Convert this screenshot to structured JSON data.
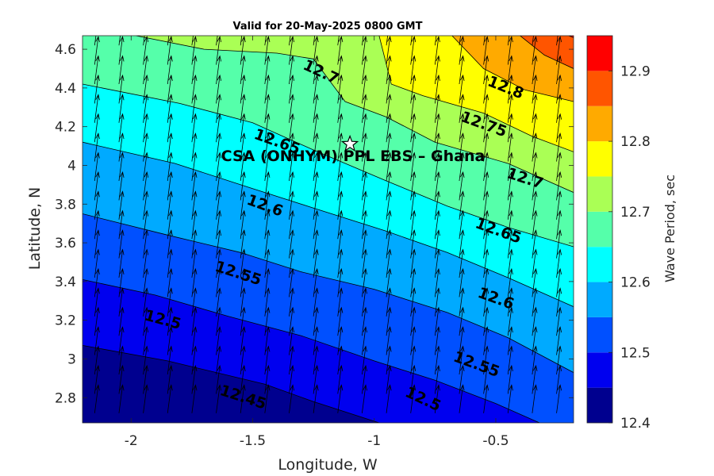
{
  "chart_data": {
    "type": "contour",
    "title": "Valid for 20-May-2025 0800 GMT",
    "xlabel": "Longitude, W",
    "ylabel": "Latitude, N",
    "xlim": [
      -2.2,
      -0.18
    ],
    "ylim": [
      2.67,
      4.67
    ],
    "x_ticks": [
      -2,
      -1.5,
      -1,
      -0.5
    ],
    "x_tick_labels": [
      "-2",
      "-1.5",
      "-1",
      "-0.5"
    ],
    "y_ticks": [
      2.8,
      3,
      3.2,
      3.4,
      3.6,
      3.8,
      4,
      4.2,
      4.4,
      4.6
    ],
    "y_tick_labels": [
      "2.8",
      "3",
      "3.2",
      "3.4",
      "3.6",
      "3.8",
      "4",
      "4.2",
      "4.4",
      "4.6"
    ],
    "colorbar": {
      "label": "Wave Period, sec",
      "range": [
        12.4,
        12.95
      ],
      "tick_values": [
        12.4,
        12.5,
        12.6,
        12.7,
        12.8,
        12.9
      ],
      "tick_labels": [
        "12.4",
        "12.5",
        "12.6",
        "12.7",
        "12.8",
        "12.9"
      ],
      "levels": [
        12.4,
        12.45,
        12.5,
        12.55,
        12.6,
        12.65,
        12.7,
        12.75,
        12.8,
        12.85,
        12.9,
        12.95
      ],
      "colors": [
        "#00008f",
        "#0000ef",
        "#0050ff",
        "#00aaff",
        "#00ffff",
        "#55ffaa",
        "#aaff55",
        "#ffff00",
        "#ffaa00",
        "#ff5500",
        "#ff0000"
      ]
    },
    "contours": [
      {
        "level": 12.45,
        "label": "12.45",
        "points": [
          [
            -2.2,
            3.07
          ],
          [
            -1.85,
            2.99
          ],
          [
            -1.45,
            2.87
          ],
          [
            -1.25,
            2.78
          ],
          [
            -0.98,
            2.67
          ]
        ]
      },
      {
        "level": 12.5,
        "label": "12.5",
        "points": [
          [
            -2.2,
            3.41
          ],
          [
            -1.9,
            3.33
          ],
          [
            -1.6,
            3.22
          ],
          [
            -1.3,
            3.12
          ],
          [
            -1.0,
            2.99
          ],
          [
            -0.75,
            2.89
          ],
          [
            -0.5,
            2.77
          ],
          [
            -0.32,
            2.67
          ]
        ]
      },
      {
        "level": 12.55,
        "label": "12.55",
        "points": [
          [
            -2.2,
            3.75
          ],
          [
            -1.85,
            3.64
          ],
          [
            -1.55,
            3.55
          ],
          [
            -1.3,
            3.45
          ],
          [
            -1.0,
            3.36
          ],
          [
            -0.7,
            3.24
          ],
          [
            -0.45,
            3.11
          ],
          [
            -0.18,
            2.93
          ]
        ]
      },
      {
        "level": 12.6,
        "label": "12.6",
        "points": [
          [
            -2.2,
            4.12
          ],
          [
            -1.82,
            4.01
          ],
          [
            -1.5,
            3.88
          ],
          [
            -1.25,
            3.78
          ],
          [
            -0.95,
            3.66
          ],
          [
            -0.7,
            3.55
          ],
          [
            -0.45,
            3.42
          ],
          [
            -0.18,
            3.27
          ]
        ]
      },
      {
        "level": 12.65,
        "label": "12.65",
        "points": [
          [
            -2.2,
            4.42
          ],
          [
            -1.8,
            4.32
          ],
          [
            -1.5,
            4.22
          ],
          [
            -1.25,
            4.08
          ],
          [
            -0.95,
            3.92
          ],
          [
            -0.7,
            3.79
          ],
          [
            -0.45,
            3.68
          ],
          [
            -0.18,
            3.58
          ]
        ]
      },
      {
        "level": 12.7,
        "label": "12.7",
        "points": [
          [
            -1.98,
            4.67
          ],
          [
            -1.7,
            4.6
          ],
          [
            -1.4,
            4.58
          ],
          [
            -1.25,
            4.55
          ],
          [
            -1.12,
            4.33
          ],
          [
            -0.95,
            4.25
          ],
          [
            -0.75,
            4.12
          ],
          [
            -0.45,
            4.01
          ],
          [
            -0.18,
            3.86
          ]
        ]
      },
      {
        "level": 12.75,
        "label": "12.75",
        "points": [
          [
            -0.98,
            4.67
          ],
          [
            -0.93,
            4.42
          ],
          [
            -0.8,
            4.36
          ],
          [
            -0.55,
            4.27
          ],
          [
            -0.35,
            4.15
          ],
          [
            -0.18,
            4.07
          ]
        ]
      },
      {
        "level": 12.8,
        "label": "12.8",
        "points": [
          [
            -0.68,
            4.67
          ],
          [
            -0.55,
            4.5
          ],
          [
            -0.38,
            4.39
          ],
          [
            -0.18,
            4.33
          ]
        ]
      },
      {
        "level": 12.85,
        "label": "",
        "points": [
          [
            -0.4,
            4.67
          ],
          [
            -0.3,
            4.57
          ],
          [
            -0.18,
            4.5
          ]
        ]
      },
      {
        "level": 12.9,
        "label": "",
        "points": [
          [
            -0.2,
            4.67
          ],
          [
            -0.18,
            4.66
          ]
        ]
      }
    ],
    "contour_labels": [
      {
        "text": "12.7",
        "x": -1.22,
        "y": 4.48,
        "angle": 25
      },
      {
        "text": "12.65",
        "x": -1.4,
        "y": 4.12,
        "angle": 20
      },
      {
        "text": "12.8",
        "x": -0.46,
        "y": 4.4,
        "angle": 22
      },
      {
        "text": "12.75",
        "x": -0.55,
        "y": 4.21,
        "angle": 20
      },
      {
        "text": "12.7",
        "x": -0.38,
        "y": 3.93,
        "angle": 18
      },
      {
        "text": "12.6",
        "x": -1.45,
        "y": 3.79,
        "angle": 20
      },
      {
        "text": "12.65",
        "x": -0.49,
        "y": 3.66,
        "angle": 20
      },
      {
        "text": "12.55",
        "x": -1.56,
        "y": 3.44,
        "angle": 18
      },
      {
        "text": "12.6",
        "x": -0.5,
        "y": 3.31,
        "angle": 20
      },
      {
        "text": "12.5",
        "x": -1.87,
        "y": 3.2,
        "angle": 15
      },
      {
        "text": "12.55",
        "x": -0.58,
        "y": 2.97,
        "angle": 20
      },
      {
        "text": "12.45",
        "x": -1.54,
        "y": 2.8,
        "angle": 18
      },
      {
        "text": "12.5",
        "x": -0.8,
        "y": 2.79,
        "angle": 25
      }
    ],
    "annotation": {
      "text": "CSA (ONHYM) PPL EBS  – Ghana",
      "marker": "star-icon",
      "x": -1.1,
      "y": 4.11
    },
    "vector_field": {
      "description_level": "uniform",
      "dx": 0.015,
      "dy": 0.145,
      "x_start": -2.15,
      "x_step": 0.1,
      "y_start": 2.72,
      "y_step": 0.1
    }
  }
}
